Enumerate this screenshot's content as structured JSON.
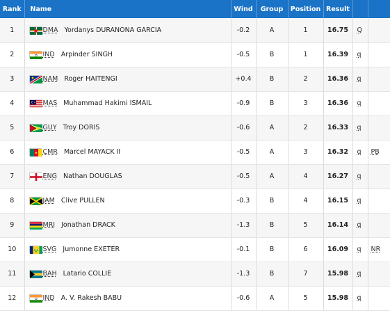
{
  "headers": {
    "rank": "Rank",
    "name": "Name",
    "wind": "Wind",
    "group": "Group",
    "position": "Position",
    "result": "Result"
  },
  "rows": [
    {
      "rank": "1",
      "country": "DMA",
      "athlete": "Yordanys DURANONA GARCIA",
      "wind": "-0.2",
      "group": "A",
      "position": "1",
      "result": "16.75",
      "q": "Q",
      "record": "",
      "flag_icon": "dominica-flag-icon"
    },
    {
      "rank": "2",
      "country": "IND",
      "athlete": "Arpinder SINGH",
      "wind": "-0.5",
      "group": "B",
      "position": "1",
      "result": "16.39",
      "q": "q",
      "record": "",
      "flag_icon": "india-flag-icon"
    },
    {
      "rank": "3",
      "country": "NAM",
      "athlete": "Roger HAITENGI",
      "wind": "+0.4",
      "group": "B",
      "position": "2",
      "result": "16.36",
      "q": "q",
      "record": "",
      "flag_icon": "namibia-flag-icon"
    },
    {
      "rank": "4",
      "country": "MAS",
      "athlete": "Muhammad Hakimi ISMAIL",
      "wind": "-0.9",
      "group": "B",
      "position": "3",
      "result": "16.36",
      "q": "q",
      "record": "",
      "flag_icon": "malaysia-flag-icon"
    },
    {
      "rank": "5",
      "country": "GUY",
      "athlete": "Troy DORIS",
      "wind": "-0.6",
      "group": "A",
      "position": "2",
      "result": "16.33",
      "q": "q",
      "record": "",
      "flag_icon": "guyana-flag-icon"
    },
    {
      "rank": "6",
      "country": "CMR",
      "athlete": "Marcel MAYACK II",
      "wind": "-0.5",
      "group": "A",
      "position": "3",
      "result": "16.32",
      "q": "q",
      "record": "PB",
      "flag_icon": "cameroon-flag-icon"
    },
    {
      "rank": "7",
      "country": "ENG",
      "athlete": "Nathan DOUGLAS",
      "wind": "-0.5",
      "group": "A",
      "position": "4",
      "result": "16.27",
      "q": "q",
      "record": "",
      "flag_icon": "england-flag-icon"
    },
    {
      "rank": "8",
      "country": "JAM",
      "athlete": "Clive PULLEN",
      "wind": "-0.3",
      "group": "B",
      "position": "4",
      "result": "16.15",
      "q": "q",
      "record": "",
      "flag_icon": "jamaica-flag-icon"
    },
    {
      "rank": "9",
      "country": "MRI",
      "athlete": "Jonathan DRACK",
      "wind": "-1.3",
      "group": "B",
      "position": "5",
      "result": "16.14",
      "q": "q",
      "record": "",
      "flag_icon": "mauritius-flag-icon"
    },
    {
      "rank": "10",
      "country": "SVG",
      "athlete": "Jumonne EXETER",
      "wind": "-0.1",
      "group": "B",
      "position": "6",
      "result": "16.09",
      "q": "q",
      "record": "NR",
      "flag_icon": "saint-vincent-flag-icon"
    },
    {
      "rank": "11",
      "country": "BAH",
      "athlete": "Latario COLLIE",
      "wind": "-1.3",
      "group": "B",
      "position": "7",
      "result": "15.98",
      "q": "q",
      "record": "",
      "flag_icon": "bahamas-flag-icon"
    },
    {
      "rank": "12",
      "country": "IND",
      "athlete": "A. V. Rakesh BABU",
      "wind": "-0.6",
      "group": "A",
      "position": "5",
      "result": "15.98",
      "q": "q",
      "record": "",
      "flag_icon": "india-flag-icon"
    }
  ],
  "colors": {
    "header_bg": "#1a73c7",
    "header_text": "#ffffff",
    "row_alt": "#f6f6f6"
  }
}
